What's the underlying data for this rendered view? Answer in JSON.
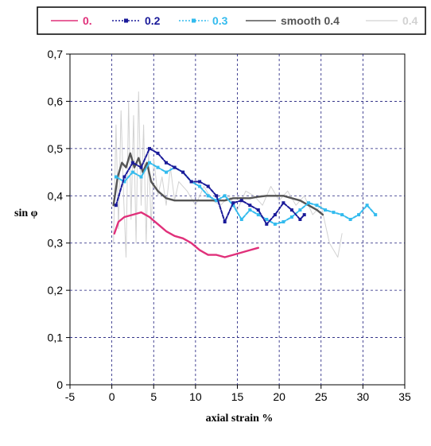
{
  "chart_data": {
    "type": "line",
    "xlabel": "axial strain %",
    "ylabel": "sin φ",
    "xlim": [
      -5,
      35
    ],
    "ylim": [
      0,
      0.7
    ],
    "xticks": [
      "-5",
      "0",
      "5",
      "10",
      "15",
      "20",
      "25",
      "30",
      "35"
    ],
    "yticks": [
      "0",
      "0,1",
      "0,2",
      "0,3",
      "0,4",
      "0,5",
      "0,6",
      "0,7"
    ],
    "grid": "dashed",
    "legend_position": "top",
    "series": [
      {
        "name": "0.",
        "color": "#e0307a",
        "style": "solid",
        "x": [
          0.3,
          0.8,
          1.5,
          2.5,
          3.5,
          4.5,
          5.5,
          6.5,
          7.5,
          8.5,
          9.5,
          10.5,
          11.5,
          12.5,
          13.5,
          14.5,
          15.5,
          16.5,
          17.5
        ],
        "y": [
          0.32,
          0.345,
          0.355,
          0.36,
          0.365,
          0.355,
          0.34,
          0.325,
          0.315,
          0.31,
          0.3,
          0.285,
          0.275,
          0.275,
          0.27,
          0.275,
          0.28,
          0.285,
          0.29
        ]
      },
      {
        "name": "0.2",
        "color": "#1a1a99",
        "style": "dotted-marker",
        "x": [
          0.5,
          1.5,
          2.5,
          3.5,
          4.5,
          5.5,
          6.5,
          7.5,
          8.5,
          9.5,
          10.5,
          11.5,
          12.5,
          13.5,
          14.5,
          15.5,
          16.5,
          17.5,
          18.5,
          19.5,
          20.5,
          21.5,
          22.5,
          23.0
        ],
        "y": [
          0.38,
          0.44,
          0.47,
          0.46,
          0.5,
          0.49,
          0.47,
          0.46,
          0.45,
          0.43,
          0.43,
          0.42,
          0.4,
          0.345,
          0.385,
          0.39,
          0.38,
          0.37,
          0.34,
          0.36,
          0.385,
          0.37,
          0.35,
          0.36
        ]
      },
      {
        "name": "0.3",
        "color": "#33bbee",
        "style": "dotted-marker",
        "x": [
          0.5,
          1.5,
          2.5,
          3.5,
          4.5,
          5.5,
          6.5,
          7.5,
          8.5,
          9.5,
          10.5,
          11.5,
          12.5,
          13.5,
          14.5,
          15.5,
          16.5,
          17.5,
          18.5,
          19.5,
          20.5,
          21.5,
          22.5,
          23.5,
          24.5,
          25.5,
          26.5,
          27.5,
          28.5,
          29.5,
          30.5,
          31.5
        ],
        "y": [
          0.44,
          0.43,
          0.45,
          0.44,
          0.47,
          0.46,
          0.45,
          0.46,
          0.45,
          0.43,
          0.42,
          0.4,
          0.39,
          0.4,
          0.38,
          0.35,
          0.37,
          0.36,
          0.35,
          0.34,
          0.345,
          0.355,
          0.37,
          0.385,
          0.38,
          0.37,
          0.365,
          0.36,
          0.35,
          0.36,
          0.38,
          0.36
        ]
      },
      {
        "name": "smooth 0.4",
        "color": "#555555",
        "style": "solid",
        "x": [
          0.2,
          0.7,
          1.2,
          1.7,
          2.2,
          2.7,
          3.2,
          3.7,
          4.2,
          4.7,
          5.5,
          6.5,
          7.5,
          8.5,
          9.5,
          10.5,
          11.5,
          12.5,
          13.5,
          14.5,
          15.5,
          16.5,
          17.5,
          18.5,
          19.5,
          20.5,
          21.5,
          22.5,
          23.5,
          24.5,
          25.2
        ],
        "y": [
          0.38,
          0.44,
          0.47,
          0.46,
          0.49,
          0.46,
          0.48,
          0.45,
          0.47,
          0.43,
          0.41,
          0.395,
          0.39,
          0.39,
          0.39,
          0.39,
          0.39,
          0.39,
          0.39,
          0.395,
          0.395,
          0.395,
          0.398,
          0.4,
          0.4,
          0.4,
          0.395,
          0.39,
          0.38,
          0.37,
          0.36
        ]
      },
      {
        "name": "0.4",
        "color": "#d2d2d2",
        "style": "solid-thin",
        "x": [
          0.2,
          0.5,
          0.8,
          1.1,
          1.4,
          1.7,
          2.0,
          2.3,
          2.6,
          2.9,
          3.2,
          3.5,
          3.8,
          4.1,
          4.4,
          4.7,
          5.0,
          5.5,
          6.0,
          6.5,
          7.0,
          7.5,
          8.0,
          9.0,
          10.0,
          11.0,
          12.0,
          13.0,
          14.0,
          15.0,
          16.0,
          17.0,
          18.0,
          19.0,
          20.0,
          21.0,
          22.0,
          23.0,
          24.0,
          25.0,
          26.0,
          27.0,
          27.5
        ],
        "y": [
          0.3,
          0.55,
          0.33,
          0.58,
          0.4,
          0.27,
          0.6,
          0.35,
          0.57,
          0.3,
          0.62,
          0.38,
          0.55,
          0.3,
          0.5,
          0.33,
          0.48,
          0.4,
          0.44,
          0.38,
          0.46,
          0.39,
          0.43,
          0.41,
          0.38,
          0.42,
          0.39,
          0.38,
          0.4,
          0.37,
          0.41,
          0.4,
          0.38,
          0.42,
          0.39,
          0.41,
          0.38,
          0.4,
          0.36,
          0.38,
          0.3,
          0.27,
          0.32
        ]
      }
    ]
  }
}
